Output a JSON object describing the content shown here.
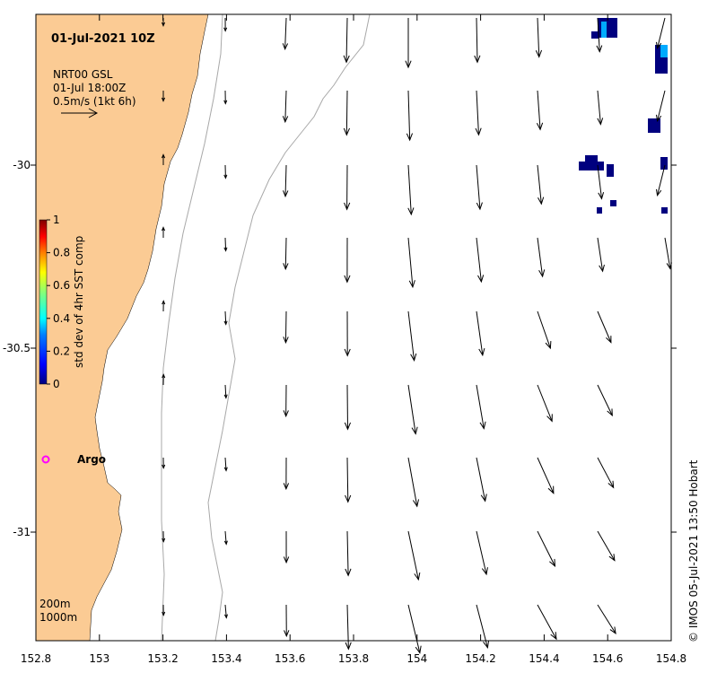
{
  "title": "01-Jul-2021 10Z",
  "legend": {
    "source": "NRT00 GSL",
    "time": "01-Jul 18:00Z",
    "scale": "0.5m/s (1kt 6h)"
  },
  "colorbar": {
    "label": "std dev of 4hr SST comp",
    "ticks": [
      "0",
      "0.2",
      "0.4",
      "0.6",
      "0.8",
      "1"
    ],
    "colors": [
      "#00007f",
      "#0000ff",
      "#007fff",
      "#00ffff",
      "#7fff7f",
      "#ffff00",
      "#ff7f00",
      "#ff0000",
      "#7f0000"
    ]
  },
  "argo": {
    "label": "Argo",
    "color": "#ff00ff"
  },
  "isobaths": {
    "shallow": "200m",
    "deep": "1000m"
  },
  "credit": "© IMOS 05-Jul-2021 13:50 Hobart",
  "axes": {
    "x_ticks": [
      "152.8",
      "153",
      "153.2",
      "153.4",
      "153.6",
      "153.8",
      "154",
      "154.2",
      "154.4",
      "154.6",
      "154.8"
    ],
    "y_ticks": [
      "-30",
      "-30.5",
      "-31"
    ]
  },
  "colors": {
    "land": "#fbcb94",
    "isobath": "#a8a8a8",
    "sst_high": "#00007f"
  }
}
